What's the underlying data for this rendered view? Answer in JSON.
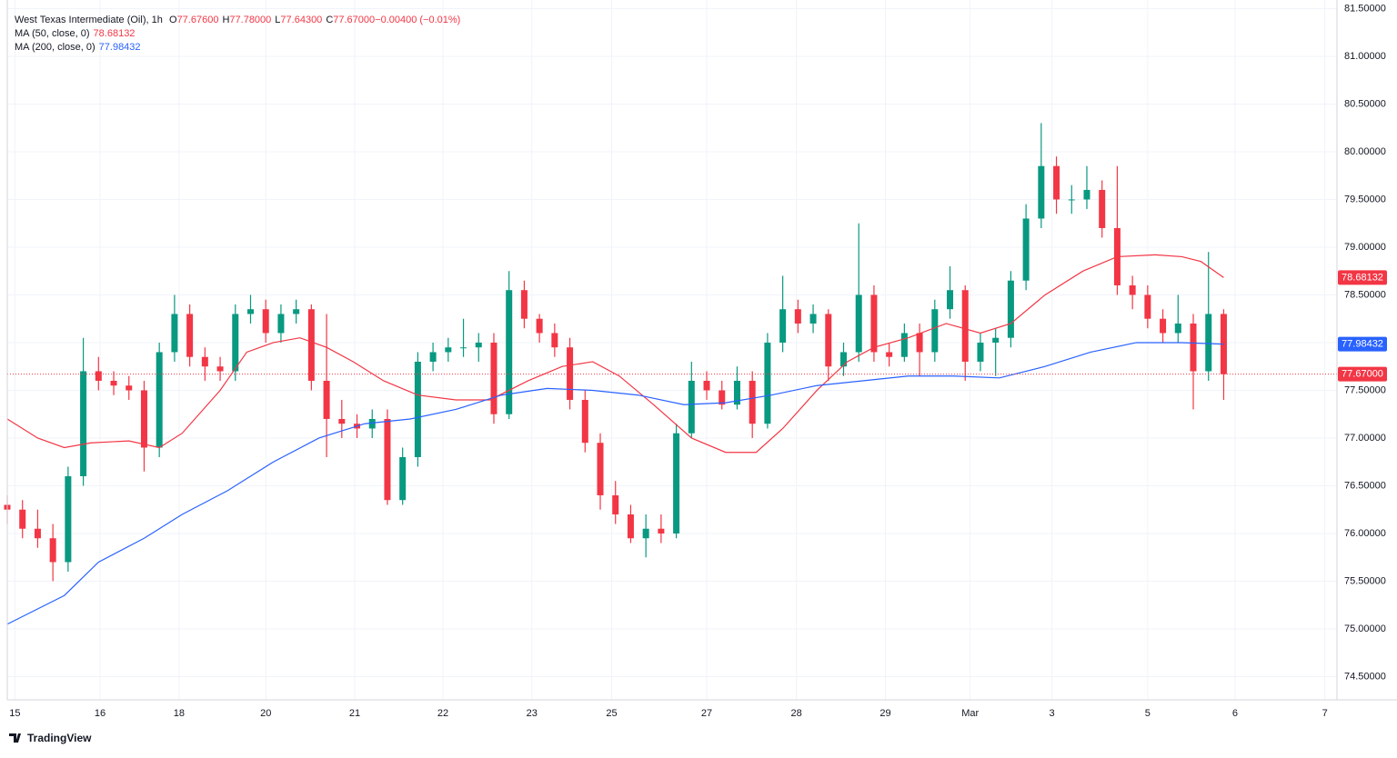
{
  "chart_data": {
    "type": "candlestick",
    "title": "West Texas Intermediate (Oil), 1h",
    "ohlc_header": [
      {
        "label": "O",
        "value": "77.67600"
      },
      {
        "label": "H",
        "value": "77.78000"
      },
      {
        "label": "L",
        "value": "77.64300"
      },
      {
        "label": "C",
        "value": "77.67000"
      },
      {
        "label": "",
        "value": "−0.00400 (−0.01%)"
      }
    ],
    "up_color": "#089981",
    "down_color": "#f23645",
    "candles": {
      "x": [
        0,
        4,
        8,
        12,
        16,
        20,
        24,
        28,
        32,
        36,
        40,
        44,
        48,
        52,
        56,
        60,
        64,
        68,
        72,
        76,
        80,
        84,
        88,
        92,
        96,
        100,
        104,
        108,
        112,
        116,
        120,
        124,
        128,
        132,
        136,
        140,
        144,
        148,
        152,
        156,
        160,
        164,
        168,
        172,
        176,
        180,
        184,
        188,
        192,
        196,
        200,
        204,
        208,
        212,
        216,
        220,
        224,
        228,
        232,
        236,
        240,
        244,
        248,
        252,
        256,
        260,
        264,
        268,
        272,
        276,
        280,
        284,
        288,
        292,
        296,
        300,
        304,
        308,
        312,
        316,
        320
      ],
      "open": [
        76.3,
        76.25,
        76.05,
        75.95,
        75.7,
        76.6,
        77.7,
        77.6,
        77.55,
        77.5,
        76.9,
        77.9,
        78.3,
        77.85,
        77.75,
        77.7,
        78.3,
        78.35,
        78.1,
        78.3,
        78.35,
        77.6,
        77.2,
        77.15,
        77.1,
        77.2,
        76.35,
        76.8,
        77.8,
        77.9,
        77.95,
        77.95,
        78.0,
        77.25,
        78.55,
        78.25,
        78.1,
        77.95,
        77.4,
        76.95,
        76.4,
        76.2,
        75.95,
        76.05,
        76.0,
        77.05,
        77.6,
        77.5,
        77.35,
        77.6,
        77.15,
        78.0,
        78.35,
        78.2,
        78.3,
        77.75,
        77.9,
        78.5,
        77.9,
        77.85,
        78.1,
        77.9,
        78.35,
        78.55,
        77.8,
        78.0,
        78.05,
        78.65,
        79.3,
        79.85,
        79.5,
        79.5,
        79.6,
        79.2,
        78.6,
        78.5,
        78.25,
        78.1,
        78.2,
        77.7,
        78.3
      ],
      "high": [
        76.4,
        76.35,
        76.25,
        76.1,
        76.7,
        78.05,
        77.85,
        77.7,
        77.65,
        77.6,
        78.0,
        78.5,
        78.4,
        77.95,
        77.85,
        78.4,
        78.5,
        78.45,
        78.4,
        78.45,
        78.4,
        78.3,
        77.4,
        77.25,
        77.3,
        77.3,
        76.9,
        77.9,
        78.0,
        78.05,
        78.25,
        78.1,
        78.1,
        78.75,
        78.65,
        78.3,
        78.2,
        78.05,
        77.5,
        77.05,
        76.55,
        76.3,
        76.2,
        76.2,
        77.15,
        77.8,
        77.7,
        77.6,
        77.75,
        77.7,
        78.1,
        78.7,
        78.45,
        78.4,
        78.35,
        78.0,
        79.25,
        78.6,
        78.0,
        78.2,
        78.2,
        78.45,
        78.8,
        78.6,
        78.1,
        78.15,
        78.75,
        79.45,
        80.3,
        79.95,
        79.65,
        79.85,
        79.7,
        79.85,
        78.7,
        78.6,
        78.35,
        78.5,
        78.3,
        78.95,
        78.35
      ],
      "low": [
        76.1,
        75.95,
        75.85,
        75.5,
        75.6,
        76.5,
        77.5,
        77.45,
        77.4,
        76.65,
        76.8,
        77.8,
        77.75,
        77.6,
        77.6,
        77.6,
        78.2,
        78.0,
        78.0,
        78.2,
        77.5,
        76.8,
        77.0,
        77.0,
        77.0,
        76.3,
        76.3,
        76.7,
        77.7,
        77.8,
        77.85,
        77.8,
        77.15,
        77.2,
        78.15,
        78.0,
        77.85,
        77.3,
        76.85,
        76.25,
        76.1,
        75.9,
        75.75,
        75.9,
        75.95,
        77.0,
        77.4,
        77.3,
        77.3,
        77.0,
        77.1,
        77.9,
        78.1,
        78.1,
        77.6,
        77.65,
        77.8,
        77.8,
        77.75,
        77.8,
        77.65,
        77.8,
        78.25,
        77.6,
        77.7,
        77.65,
        77.95,
        78.55,
        79.2,
        79.35,
        79.35,
        79.4,
        79.1,
        78.5,
        78.35,
        78.15,
        78.0,
        78.0,
        77.3,
        77.6,
        77.4
      ],
      "close": [
        76.25,
        76.05,
        75.95,
        75.7,
        76.6,
        77.7,
        77.6,
        77.55,
        77.5,
        76.9,
        77.9,
        78.3,
        77.85,
        77.75,
        77.7,
        78.3,
        78.35,
        78.1,
        78.3,
        78.35,
        77.6,
        77.2,
        77.15,
        77.1,
        77.2,
        76.35,
        76.8,
        77.8,
        77.9,
        77.95,
        77.95,
        78.0,
        77.25,
        78.55,
        78.25,
        78.1,
        77.95,
        77.4,
        76.95,
        76.4,
        76.2,
        75.95,
        76.05,
        76.0,
        77.05,
        77.6,
        77.5,
        77.35,
        77.6,
        77.15,
        78.0,
        78.35,
        78.2,
        78.3,
        77.75,
        77.9,
        78.5,
        77.9,
        77.85,
        78.1,
        77.9,
        78.35,
        78.55,
        77.8,
        78.0,
        78.05,
        78.65,
        79.3,
        79.85,
        79.5,
        79.5,
        79.6,
        79.2,
        78.6,
        78.5,
        78.25,
        78.1,
        78.2,
        77.7,
        78.3,
        77.67
      ]
    },
    "series": [
      {
        "name": "MA (50, close, 0)",
        "color": "#f23645",
        "last_label": "78.68132",
        "last_value": 78.68132,
        "x": [
          0,
          8,
          15,
          22,
          32,
          40,
          46,
          56,
          63,
          70,
          77,
          84,
          91,
          99,
          108,
          118,
          127,
          137,
          146,
          154,
          161,
          170,
          180,
          189,
          197,
          204,
          213,
          221,
          228,
          237,
          247,
          256,
          264,
          273,
          283,
          292,
          302,
          309,
          314,
          320
        ],
        "values": [
          77.2,
          77.0,
          76.9,
          76.95,
          76.97,
          76.9,
          77.05,
          77.5,
          77.9,
          78.0,
          78.05,
          77.95,
          77.8,
          77.6,
          77.45,
          77.4,
          77.4,
          77.6,
          77.75,
          77.8,
          77.65,
          77.35,
          77.0,
          76.85,
          76.85,
          77.1,
          77.5,
          77.8,
          77.95,
          78.05,
          78.2,
          78.1,
          78.2,
          78.5,
          78.75,
          78.9,
          78.92,
          78.9,
          78.85,
          78.68132
        ]
      },
      {
        "name": "MA (200, close, 0)",
        "color": "#2962ff",
        "last_label": "77.98432",
        "last_value": 77.98432,
        "x": [
          0,
          15,
          24,
          36,
          46,
          58,
          70,
          82,
          94,
          106,
          118,
          130,
          142,
          154,
          166,
          178,
          189,
          201,
          213,
          225,
          237,
          249,
          261,
          273,
          285,
          297,
          309,
          320
        ],
        "values": [
          75.05,
          75.35,
          75.7,
          75.95,
          76.2,
          76.45,
          76.75,
          77.0,
          77.15,
          77.2,
          77.3,
          77.45,
          77.52,
          77.5,
          77.45,
          77.35,
          77.37,
          77.45,
          77.55,
          77.6,
          77.65,
          77.65,
          77.63,
          77.75,
          77.9,
          78.0,
          78.0,
          77.98432
        ]
      }
    ],
    "last_price": {
      "value": 77.67,
      "label": "77.67000"
    },
    "xlim": [
      0,
      349.8
    ],
    "xticks": [
      {
        "value": 2,
        "label": "15"
      },
      {
        "value": 24.4,
        "label": "16"
      },
      {
        "value": 45.2,
        "label": "18"
      },
      {
        "value": 68,
        "label": "20"
      },
      {
        "value": 91.4,
        "label": "21"
      },
      {
        "value": 114.6,
        "label": "22"
      },
      {
        "value": 138,
        "label": "23"
      },
      {
        "value": 159,
        "label": "25"
      },
      {
        "value": 184,
        "label": "27"
      },
      {
        "value": 207.6,
        "label": "28"
      },
      {
        "value": 231,
        "label": "29"
      },
      {
        "value": 253.3,
        "label": "Mar"
      },
      {
        "value": 274.8,
        "label": "3"
      },
      {
        "value": 300,
        "label": "5"
      },
      {
        "value": 323,
        "label": "6"
      },
      {
        "value": 346.6,
        "label": "7"
      }
    ],
    "ylim": [
      74.257,
      81.59
    ],
    "yticks": [
      {
        "value": 74.5,
        "label": "74.50000"
      },
      {
        "value": 75,
        "label": "75.00000"
      },
      {
        "value": 75.5,
        "label": "75.50000"
      },
      {
        "value": 76,
        "label": "76.00000"
      },
      {
        "value": 76.5,
        "label": "76.50000"
      },
      {
        "value": 77,
        "label": "77.00000"
      },
      {
        "value": 77.5,
        "label": "77.50000"
      },
      {
        "value": 78,
        "label": "78.00000"
      },
      {
        "value": 78.5,
        "label": "78.50000"
      },
      {
        "value": 79,
        "label": "79.00000"
      },
      {
        "value": 79.5,
        "label": "79.50000"
      },
      {
        "value": 80,
        "label": "80.00000"
      },
      {
        "value": 80.5,
        "label": "80.50000"
      },
      {
        "value": 81,
        "label": "81.00000"
      },
      {
        "value": 81.5,
        "label": "81.50000"
      }
    ],
    "grid": true,
    "watermark": "TradingView"
  }
}
